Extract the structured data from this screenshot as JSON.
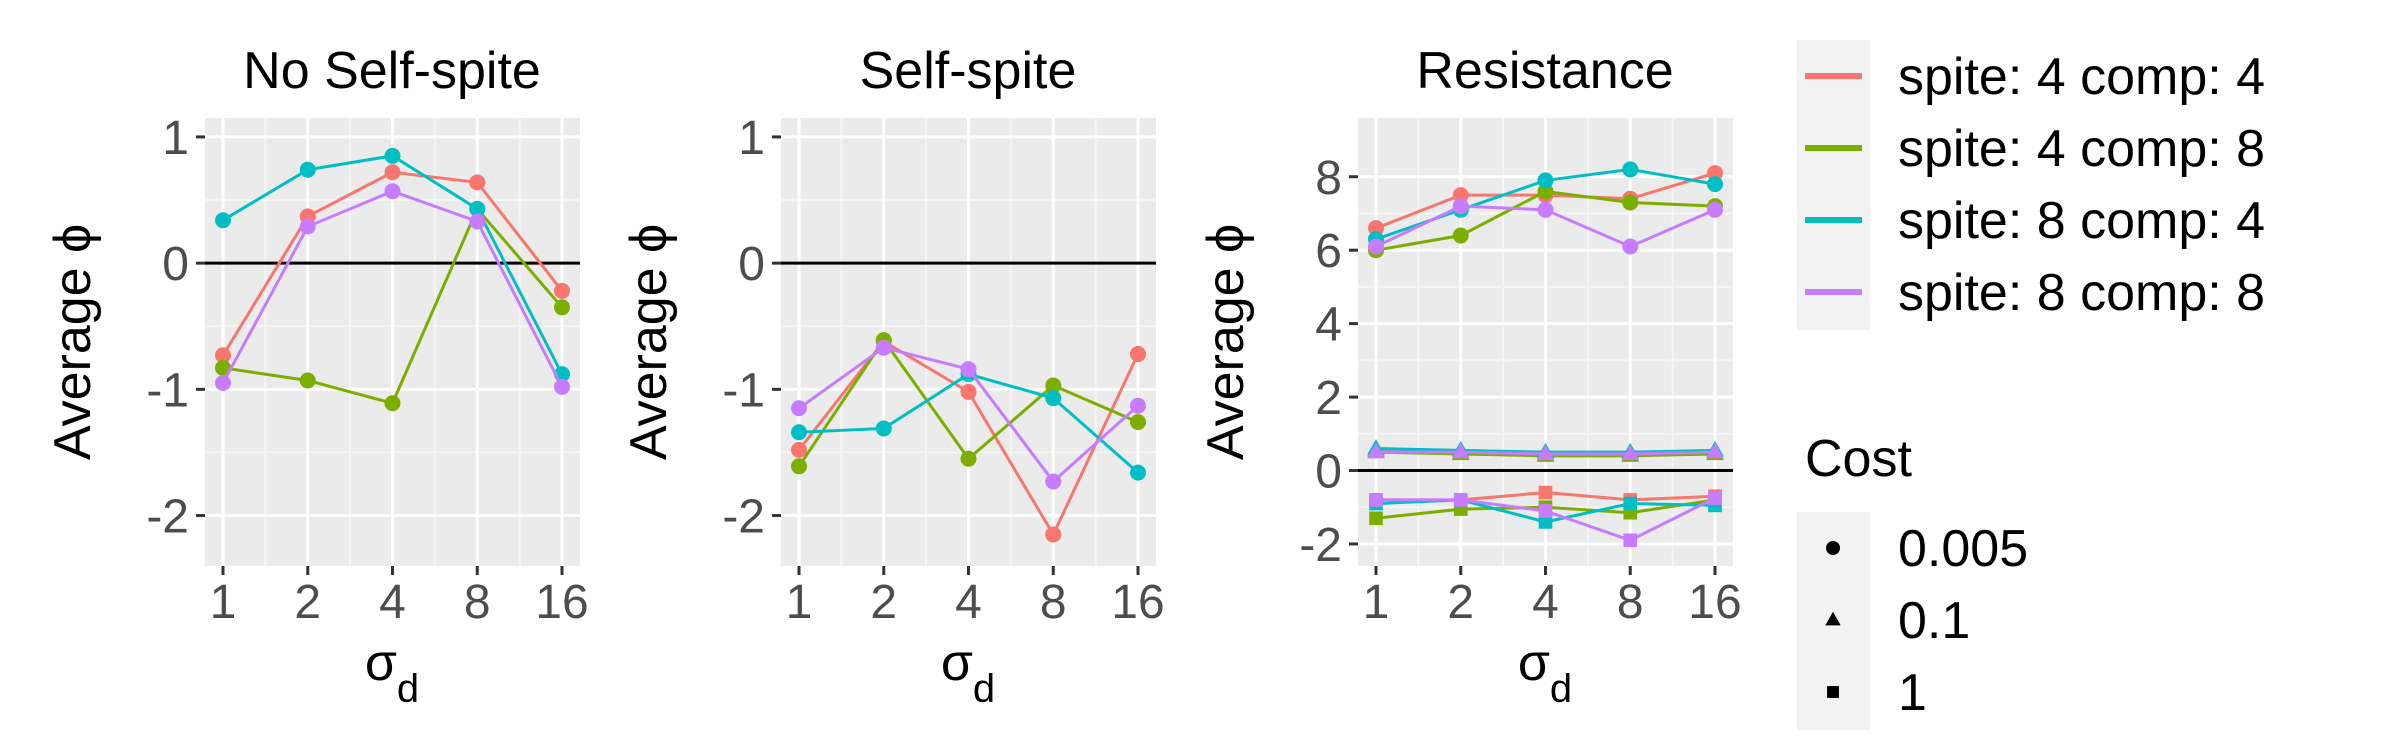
{
  "chart_data": {
    "type": "line",
    "categories": [
      "1",
      "2",
      "4",
      "8",
      "16"
    ],
    "xlabel": "σ",
    "xlabel_subscript": "d",
    "ylabel": "Average ϕ",
    "colors": {
      "spite: 4 comp: 4": "#F8766D",
      "spite: 4 comp: 8": "#7CAE00",
      "spite: 8 comp: 4": "#00BFC4",
      "spite: 8 comp: 8": "#C77CFF"
    },
    "legend": {
      "color_entries": [
        "spite: 4 comp: 4",
        "spite: 4 comp: 8",
        "spite: 8 comp: 4",
        "spite: 8 comp: 8"
      ],
      "shape_title": "Cost",
      "shape_entries": [
        {
          "label": "0.005",
          "shape": "circle"
        },
        {
          "label": "0.1",
          "shape": "triangle"
        },
        {
          "label": "1",
          "shape": "square"
        }
      ]
    },
    "panels": [
      {
        "title": "No Self-spite",
        "ylim": [
          -2.4,
          1.15
        ],
        "yticks": [
          1,
          0,
          -1,
          -2
        ],
        "ytick_labels": [
          "1",
          "0",
          "-1",
          "-2"
        ],
        "series": [
          {
            "name": "spite: 4 comp: 4",
            "cost": "0.005",
            "values": [
              -0.73,
              0.37,
              0.72,
              0.64,
              -0.22
            ]
          },
          {
            "name": "spite: 4 comp: 8",
            "cost": "0.005",
            "values": [
              -0.83,
              -0.93,
              -1.11,
              0.43,
              -0.35
            ]
          },
          {
            "name": "spite: 8 comp: 4",
            "cost": "0.005",
            "values": [
              0.34,
              0.74,
              0.85,
              0.43,
              -0.88
            ]
          },
          {
            "name": "spite: 8 comp: 8",
            "cost": "0.005",
            "values": [
              -0.95,
              0.29,
              0.57,
              0.33,
              -0.98
            ]
          }
        ]
      },
      {
        "title": "Self-spite",
        "ylim": [
          -2.4,
          1.15
        ],
        "yticks": [
          1,
          0,
          -1,
          -2
        ],
        "ytick_labels": [
          "1",
          "0",
          "-1",
          "-2"
        ],
        "series": [
          {
            "name": "spite: 4 comp: 4",
            "cost": "0.005",
            "values": [
              -1.48,
              -0.62,
              -1.02,
              -2.15,
              -0.72
            ]
          },
          {
            "name": "spite: 4 comp: 8",
            "cost": "0.005",
            "values": [
              -1.61,
              -0.61,
              -1.55,
              -0.97,
              -1.26
            ]
          },
          {
            "name": "spite: 8 comp: 4",
            "cost": "0.005",
            "values": [
              -1.34,
              -1.31,
              -0.88,
              -1.07,
              -1.66
            ]
          },
          {
            "name": "spite: 8 comp: 8",
            "cost": "0.005",
            "values": [
              -1.15,
              -0.67,
              -0.84,
              -1.73,
              -1.13
            ]
          }
        ]
      },
      {
        "title": "Resistance",
        "ylim": [
          -2.6,
          9.6
        ],
        "yticks": [
          8,
          6,
          4,
          2,
          0,
          -2
        ],
        "ytick_labels": [
          "8",
          "6",
          "4",
          "2",
          "0",
          "-2"
        ],
        "series": [
          {
            "name": "spite: 4 comp: 4",
            "cost": "0.005",
            "values": [
              6.6,
              7.5,
              7.5,
              7.4,
              8.1
            ]
          },
          {
            "name": "spite: 4 comp: 8",
            "cost": "0.005",
            "values": [
              6.0,
              6.4,
              7.6,
              7.3,
              7.2
            ]
          },
          {
            "name": "spite: 8 comp: 4",
            "cost": "0.005",
            "values": [
              6.3,
              7.1,
              7.9,
              8.2,
              7.8
            ]
          },
          {
            "name": "spite: 8 comp: 8",
            "cost": "0.005",
            "values": [
              6.1,
              7.2,
              7.1,
              6.1,
              7.1
            ]
          },
          {
            "name": "spite: 4 comp: 4",
            "cost": "0.1",
            "values": [
              0.55,
              0.5,
              0.45,
              0.45,
              0.5
            ]
          },
          {
            "name": "spite: 4 comp: 8",
            "cost": "0.1",
            "values": [
              0.5,
              0.45,
              0.4,
              0.4,
              0.45
            ]
          },
          {
            "name": "spite: 8 comp: 4",
            "cost": "0.1",
            "values": [
              0.6,
              0.55,
              0.5,
              0.5,
              0.55
            ]
          },
          {
            "name": "spite: 8 comp: 8",
            "cost": "0.1",
            "values": [
              0.5,
              0.5,
              0.45,
              0.45,
              0.5
            ]
          },
          {
            "name": "spite: 4 comp: 4",
            "cost": "1",
            "values": [
              -0.8,
              -0.8,
              -0.6,
              -0.8,
              -0.7
            ]
          },
          {
            "name": "spite: 4 comp: 8",
            "cost": "1",
            "values": [
              -1.3,
              -1.05,
              -1.0,
              -1.15,
              -0.8
            ]
          },
          {
            "name": "spite: 8 comp: 4",
            "cost": "1",
            "values": [
              -0.9,
              -0.8,
              -1.4,
              -0.9,
              -0.95
            ]
          },
          {
            "name": "spite: 8 comp: 8",
            "cost": "1",
            "values": [
              -0.8,
              -0.8,
              -1.1,
              -1.9,
              -0.75
            ]
          }
        ]
      }
    ]
  }
}
